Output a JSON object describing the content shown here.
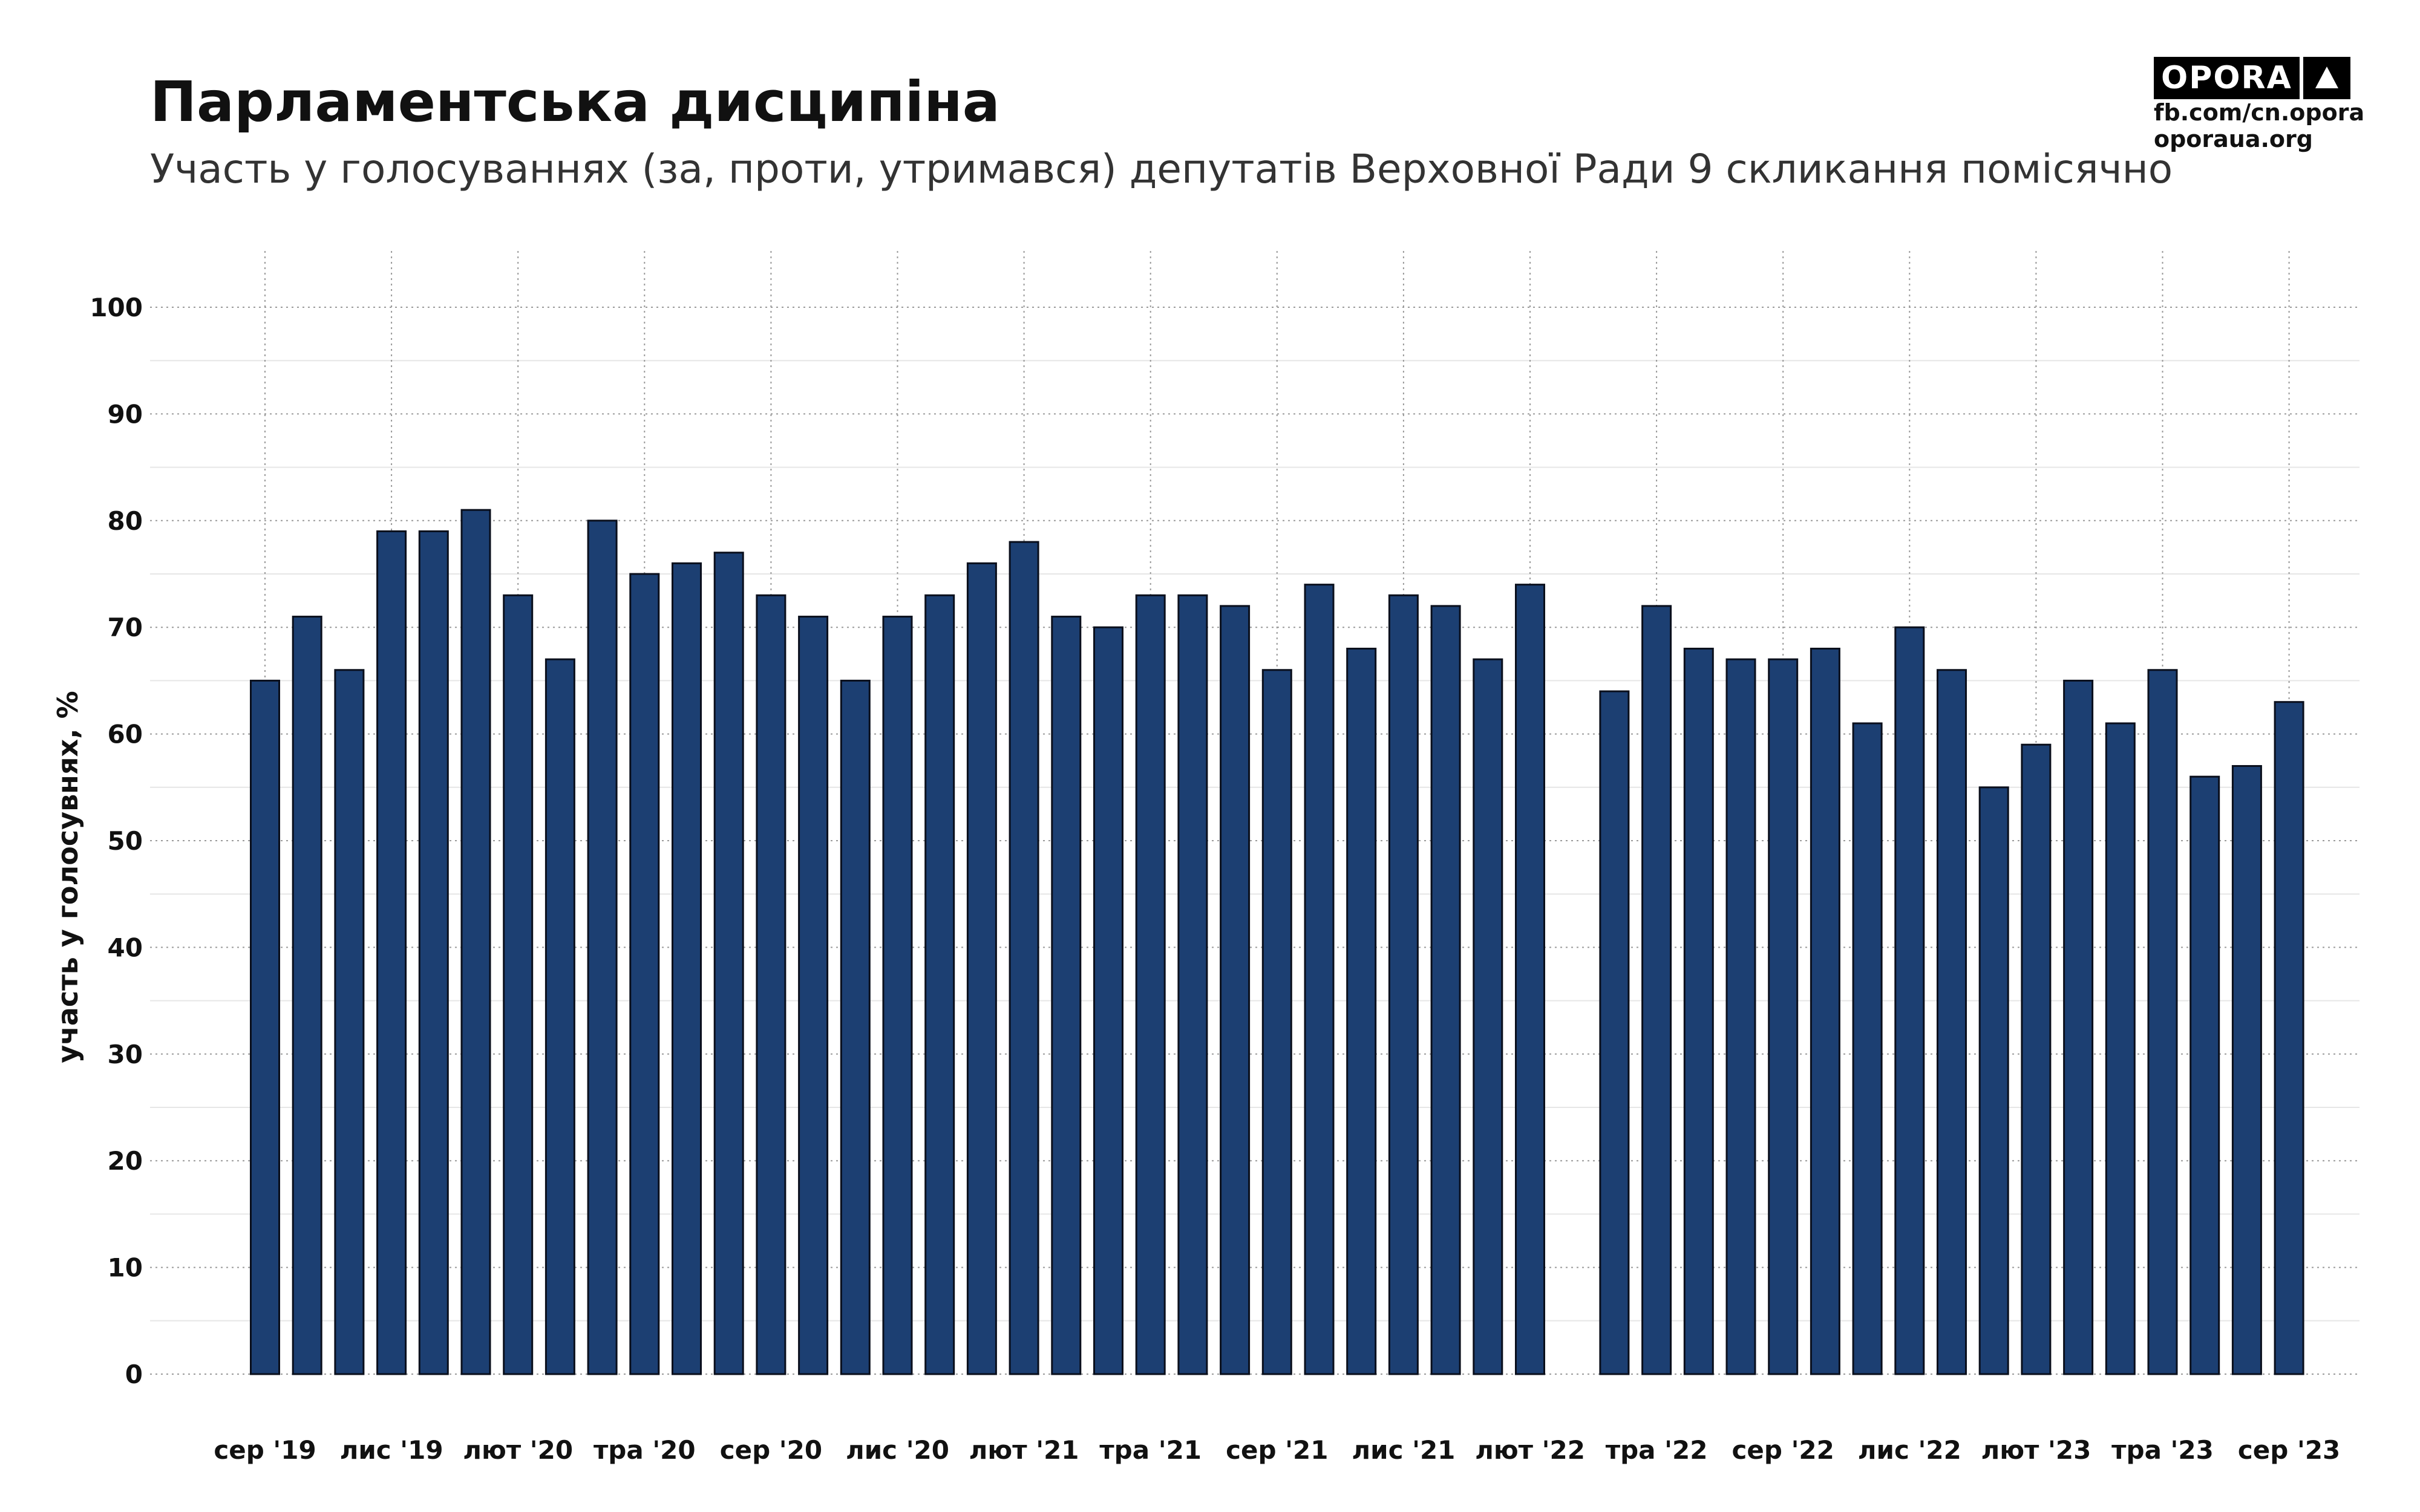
{
  "chart_data": {
    "type": "bar",
    "title": "Парламентська дисципіна",
    "subtitle": "Участь у голосуваннях (за, проти, утримався) депутатів Верховної Ради 9 скликання помісячно",
    "ylabel": "участь у голосувнях, %",
    "xlabel": "",
    "ylim": [
      0,
      100
    ],
    "yticks": [
      0,
      10,
      20,
      30,
      40,
      50,
      60,
      70,
      80,
      90,
      100
    ],
    "grid": true,
    "x_axis_type": "monthly-date",
    "x_ticks": [
      {
        "month_index": 0,
        "label": "сер '19"
      },
      {
        "month_index": 3,
        "label": "лис '19"
      },
      {
        "month_index": 6,
        "label": "лют '20"
      },
      {
        "month_index": 9,
        "label": "тра '20"
      },
      {
        "month_index": 12,
        "label": "сер '20"
      },
      {
        "month_index": 15,
        "label": "лис '20"
      },
      {
        "month_index": 18,
        "label": "лют '21"
      },
      {
        "month_index": 21,
        "label": "тра '21"
      },
      {
        "month_index": 24,
        "label": "сер '21"
      },
      {
        "month_index": 27,
        "label": "лис '21"
      },
      {
        "month_index": 30,
        "label": "лют '22"
      },
      {
        "month_index": 33,
        "label": "тра '22"
      },
      {
        "month_index": 36,
        "label": "сер '22"
      },
      {
        "month_index": 39,
        "label": "лис '22"
      },
      {
        "month_index": 42,
        "label": "лют '23"
      },
      {
        "month_index": 45,
        "label": "тра '23"
      },
      {
        "month_index": 48,
        "label": "сер '23"
      }
    ],
    "points": [
      {
        "month_index": 0,
        "value": 65
      },
      {
        "month_index": 1,
        "value": 71
      },
      {
        "month_index": 2,
        "value": 66
      },
      {
        "month_index": 3,
        "value": 79
      },
      {
        "month_index": 4,
        "value": 79
      },
      {
        "month_index": 5,
        "value": 81
      },
      {
        "month_index": 6,
        "value": 73
      },
      {
        "month_index": 7,
        "value": 67
      },
      {
        "month_index": 8,
        "value": 80
      },
      {
        "month_index": 9,
        "value": 75
      },
      {
        "month_index": 10,
        "value": 76
      },
      {
        "month_index": 11,
        "value": 77
      },
      {
        "month_index": 12,
        "value": 73
      },
      {
        "month_index": 13,
        "value": 71
      },
      {
        "month_index": 14,
        "value": 65
      },
      {
        "month_index": 15,
        "value": 71
      },
      {
        "month_index": 16,
        "value": 73
      },
      {
        "month_index": 17,
        "value": 76
      },
      {
        "month_index": 18,
        "value": 78
      },
      {
        "month_index": 19,
        "value": 71
      },
      {
        "month_index": 20,
        "value": 70
      },
      {
        "month_index": 21,
        "value": 73
      },
      {
        "month_index": 22,
        "value": 73
      },
      {
        "month_index": 23,
        "value": 72
      },
      {
        "month_index": 24,
        "value": 66
      },
      {
        "month_index": 25,
        "value": 74
      },
      {
        "month_index": 26,
        "value": 68
      },
      {
        "month_index": 27,
        "value": 73
      },
      {
        "month_index": 28,
        "value": 72
      },
      {
        "month_index": 29,
        "value": 67
      },
      {
        "month_index": 30,
        "value": 74
      },
      {
        "month_index": 32,
        "value": 64
      },
      {
        "month_index": 33,
        "value": 72
      },
      {
        "month_index": 34,
        "value": 68
      },
      {
        "month_index": 35,
        "value": 67
      },
      {
        "month_index": 36,
        "value": 67
      },
      {
        "month_index": 37,
        "value": 68
      },
      {
        "month_index": 38,
        "value": 61
      },
      {
        "month_index": 39,
        "value": 70
      },
      {
        "month_index": 40,
        "value": 66
      },
      {
        "month_index": 41,
        "value": 55
      },
      {
        "month_index": 42,
        "value": 59
      },
      {
        "month_index": 43,
        "value": 65
      },
      {
        "month_index": 44,
        "value": 61
      },
      {
        "month_index": 45,
        "value": 66
      },
      {
        "month_index": 46,
        "value": 56
      },
      {
        "month_index": 47,
        "value": 57
      },
      {
        "month_index": 48,
        "value": 63
      }
    ],
    "colors": {
      "bar_fill": "#1c3f72",
      "bar_stroke": "#0a0f1c"
    }
  },
  "brand": {
    "name": "OPORA",
    "links": [
      "fb.com/cn.opora",
      "oporaua.org"
    ]
  }
}
